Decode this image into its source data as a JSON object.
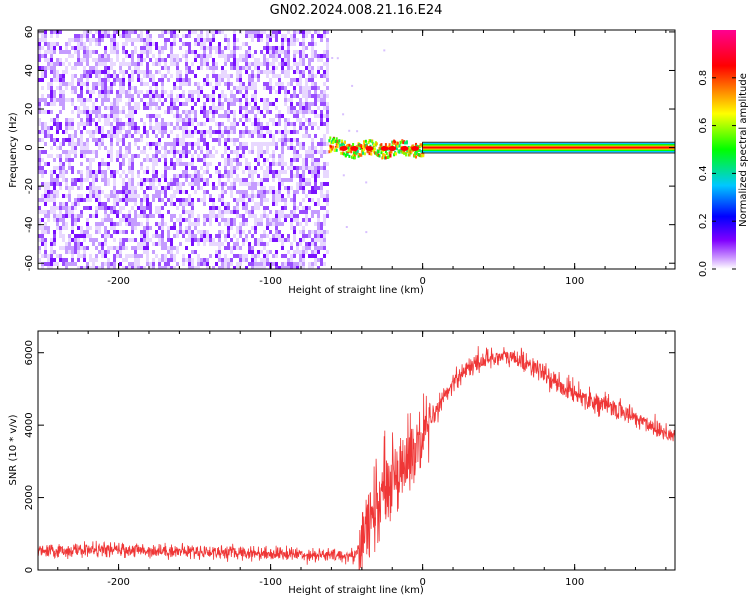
{
  "title": "GN02.2024.008.21.16.E24",
  "chart_data": [
    {
      "type": "heatmap",
      "xlabel": "Height of straight line (km)",
      "ylabel": "Frequency (Hz)",
      "xlim": [
        -253,
        166
      ],
      "ylim": [
        -63,
        61
      ],
      "xticks": [
        -200,
        -100,
        0,
        100
      ],
      "yticks": [
        60,
        40,
        20,
        0,
        -20,
        -40,
        -60
      ],
      "colorbar": {
        "label": "Normalized spectral amplitude",
        "range": [
          0,
          1
        ],
        "ticks": [
          "0.0",
          "0.2",
          "0.4",
          "0.6",
          "0.8"
        ],
        "colormap": [
          "#ffffff",
          "#8000ff",
          "#0000ff",
          "#00c8ff",
          "#00ff00",
          "#ffff00",
          "#ff8000",
          "#ff0000",
          "#ff00a0"
        ]
      },
      "regions": [
        {
          "name": "noise",
          "x_range": [
            -253,
            -62
          ],
          "freq_range": [
            -63,
            61
          ],
          "amplitude_range": [
            0.0,
            0.15
          ]
        },
        {
          "name": "transition",
          "x_range": [
            -62,
            0
          ],
          "center_freq_hz": 0,
          "half_width_hz": 3,
          "amplitude_range": [
            0.25,
            1.0
          ]
        },
        {
          "name": "signal_line",
          "x_range": [
            0,
            166
          ],
          "center_freq_hz": 0,
          "half_width_hz": 2.5,
          "amplitude": 1.0
        }
      ]
    },
    {
      "type": "line",
      "xlabel": "Height of straight line (km)",
      "ylabel": "SNR (10 * v/v)",
      "xlim": [
        -253,
        166
      ],
      "ylim": [
        0,
        6600
      ],
      "xticks": [
        -200,
        -100,
        0,
        100
      ],
      "yticks": [
        0,
        2000,
        4000,
        6000
      ],
      "color": "#ef3636",
      "series": [
        {
          "x": [
            -253,
            -220,
            -180,
            -140,
            -100,
            -70,
            -45,
            -40,
            -30,
            -20,
            -10,
            0,
            10,
            20,
            30,
            40,
            50,
            60,
            70,
            80,
            90,
            100,
            110,
            120,
            130,
            140,
            150,
            160,
            166
          ],
          "y": [
            500,
            560,
            540,
            500,
            460,
            420,
            380,
            800,
            1800,
            2600,
            3000,
            3500,
            4500,
            5200,
            5600,
            5800,
            5900,
            5850,
            5700,
            5400,
            5100,
            4900,
            4700,
            4550,
            4400,
            4200,
            4000,
            3800,
            3700
          ]
        }
      ]
    }
  ]
}
